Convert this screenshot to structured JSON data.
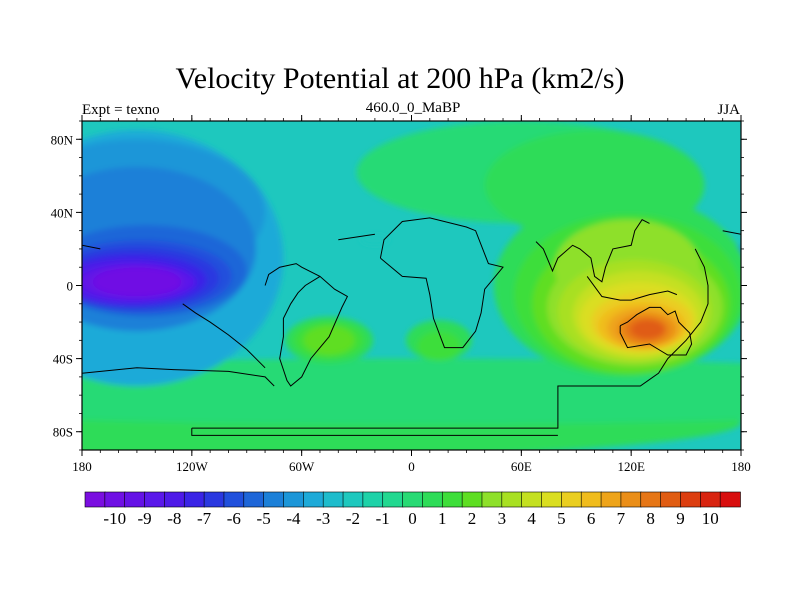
{
  "title": "Velocity Potential at 200 hPa (km2/s)",
  "subtitle_left": "Expt = texno",
  "subtitle_center": "460.0_0_MaBP",
  "subtitle_right": "JJA",
  "x_ticks": [
    "180",
    "120W",
    "60W",
    "0",
    "60E",
    "120E",
    "180"
  ],
  "y_ticks": [
    "80N",
    "40N",
    "0",
    "40S",
    "80S"
  ],
  "colorbar_labels": [
    "-10",
    "-9",
    "-8",
    "-7",
    "-6",
    "-5",
    "-4",
    "-3",
    "-2",
    "-1",
    "0",
    "1",
    "2",
    "3",
    "4",
    "5",
    "6",
    "7",
    "8",
    "9",
    "10"
  ],
  "colors": {
    "levels": [
      "#7a0ee0",
      "#6f10e4",
      "#6412e6",
      "#5a18ea",
      "#4e1ae8",
      "#3a24e6",
      "#2a38e0",
      "#2050dc",
      "#1e66d8",
      "#1c80d8",
      "#1c96d8",
      "#1eaad8",
      "#1ebccc",
      "#1ec8be",
      "#1ed2a8",
      "#22d890",
      "#28da74",
      "#2edc58",
      "#3ede3a",
      "#5ede22",
      "#8ee02a",
      "#a8e022",
      "#c4e020",
      "#dade20",
      "#eace20",
      "#f0bc1c",
      "#eea41a",
      "#ea8e18",
      "#e67616",
      "#e05c12",
      "#dc3e10",
      "#d82410",
      "#d80e0e"
    ],
    "background": "#1ec8be"
  },
  "chart_data": {
    "type": "heatmap",
    "variable": "Velocity Potential at 200 hPa",
    "units": "km2/s",
    "experiment": "texno",
    "period": "460.0_0_MaBP",
    "season": "JJA",
    "x_range": [
      -180,
      180
    ],
    "y_range": [
      -90,
      90
    ],
    "contour_levels": [
      -10,
      -9,
      -8,
      -7,
      -6,
      -5,
      -4,
      -3,
      -2,
      -1,
      0,
      1,
      2,
      3,
      4,
      5,
      6,
      7,
      8,
      9,
      10
    ],
    "features": [
      {
        "name": "minimum",
        "lon": -145,
        "lat": 2,
        "value": -10.5
      },
      {
        "name": "maximum",
        "lon": 128,
        "lat": -24,
        "value": 8.5
      },
      {
        "name": "secondary-max",
        "lon": -45,
        "lat": -30,
        "value": 3
      },
      {
        "name": "secondary-max",
        "lon": 15,
        "lat": -33,
        "value": 2
      }
    ]
  }
}
